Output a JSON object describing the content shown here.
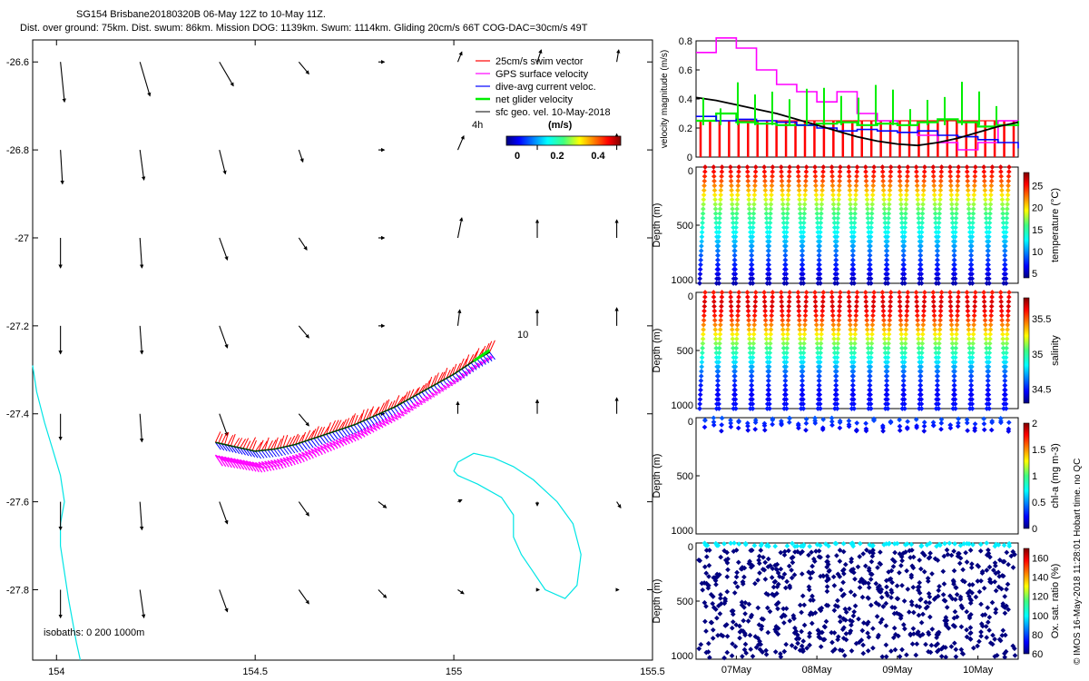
{
  "header": {
    "line1": "SG154 Brisbane20180320B 06-May 12Z to 10-May 11Z.",
    "line2": "Dist. over ground: 75km. Dist. swum: 86km. Mission DOG: 1139km. Swum: 1114km. Gliding 20cm/s 66T COG-DAC=30cm/s 49T"
  },
  "copyright": "© IMOS 16-May-2018 11:28:01 Hobart time. no QC",
  "colors": {
    "swim": "#ff0000",
    "gps": "#ff00ff",
    "dac": "#0000ff",
    "net": "#00ee00",
    "sfc": "#000000",
    "coast": "#00e5e5"
  },
  "chart_data": [
    {
      "type": "scatter",
      "name": "track-map",
      "xlim": [
        153.94,
        155.5
      ],
      "ylim": [
        -27.96,
        -26.55
      ],
      "xticks": [
        154,
        154.5,
        155,
        155.5
      ],
      "xtick_labels": [
        "154",
        "154.5",
        "155",
        "155.5"
      ],
      "yticks": [
        -26.6,
        -26.8,
        -27,
        -27.2,
        -27.4,
        -27.6,
        -27.8
      ],
      "ytick_labels": [
        "-26.6",
        "-26.8",
        "-27",
        "-27.2",
        "-27.4",
        "-27.6",
        "-27.8"
      ],
      "legend": [
        {
          "label": "25cm/s swim vector",
          "color": "#ff0000"
        },
        {
          "label": "GPS surface velocity",
          "color": "#ff00ff"
        },
        {
          "label": "dive-avg current veloc.",
          "color": "#0000ff"
        },
        {
          "label": "net glider velocity",
          "color": "#00ee00"
        },
        {
          "label": "sfc geo. vel. 10-May-2018",
          "color": "#000000"
        }
      ],
      "colorbar": {
        "title": "(m/s)",
        "ticks": [
          "0",
          "0.2",
          "0.4"
        ],
        "range": [
          0,
          0.5
        ]
      },
      "annotations": {
        "corner_label": "4h",
        "scale_label": "10",
        "isobaths": "isobaths: 0   200  1000m"
      },
      "track": {
        "lon": [
          154.4,
          154.45,
          154.5,
          154.55,
          154.6,
          154.65,
          154.7,
          154.75,
          154.8,
          154.85,
          154.9,
          154.95,
          155.0,
          155.05,
          155.09
        ],
        "lat": [
          -27.465,
          -27.475,
          -27.485,
          -27.48,
          -27.47,
          -27.455,
          -27.44,
          -27.425,
          -27.405,
          -27.385,
          -27.36,
          -27.335,
          -27.31,
          -27.28,
          -27.26
        ]
      },
      "coastline": {
        "lon": [
          153.94,
          153.95,
          153.97,
          153.99,
          154.01,
          154.02,
          154.01,
          154.01,
          154.02,
          154.03,
          154.04,
          154.05,
          154.06
        ],
        "lat": [
          -27.29,
          -27.35,
          -27.42,
          -27.48,
          -27.54,
          -27.6,
          -27.65,
          -27.7,
          -27.76,
          -27.82,
          -27.87,
          -27.92,
          -27.96
        ]
      },
      "isobath_loop": {
        "lon": [
          155.0,
          155.01,
          155.05,
          155.1,
          155.15,
          155.2,
          155.26,
          155.3,
          155.32,
          155.31,
          155.28,
          155.23,
          155.2,
          155.17,
          155.15,
          155.15,
          155.12,
          155.06,
          155.01,
          155.0
        ],
        "lat": [
          -27.53,
          -27.51,
          -27.49,
          -27.5,
          -27.52,
          -27.55,
          -27.6,
          -27.65,
          -27.72,
          -27.79,
          -27.82,
          -27.8,
          -27.76,
          -27.72,
          -27.68,
          -27.63,
          -27.59,
          -27.56,
          -27.54,
          -27.53
        ]
      },
      "vector_field": {
        "lon": [
          154.01,
          154.21,
          154.41,
          154.61,
          154.81,
          155.01,
          155.21,
          155.41
        ],
        "lat": [
          -26.6,
          -26.8,
          -27.0,
          -27.2,
          -27.4,
          -27.6,
          -27.8
        ],
        "u": [
          [
            0.02,
            0.05,
            0.07,
            0.05,
            0.03,
            0.02,
            0.02,
            0.01
          ],
          [
            0.01,
            0.02,
            0.03,
            0.02,
            0.03,
            0.03,
            0.0,
            0.0
          ],
          [
            0.0,
            0.01,
            0.04,
            0.04,
            0.03,
            0.02,
            0.0,
            0.0
          ],
          [
            0.0,
            0.01,
            0.04,
            0.05,
            0.03,
            0.01,
            0.0,
            0.0
          ],
          [
            0.0,
            0.01,
            0.04,
            0.05,
            0.03,
            0.0,
            0.0,
            0.0
          ],
          [
            0.0,
            0.01,
            0.04,
            0.05,
            0.04,
            0.02,
            0.0,
            0.02
          ],
          [
            0.0,
            0.02,
            0.04,
            0.05,
            0.04,
            0.03,
            0.01,
            0.01
          ]
        ],
        "v": [
          [
            -0.2,
            -0.17,
            -0.12,
            -0.06,
            0.0,
            0.05,
            0.06,
            0.06
          ],
          [
            -0.17,
            -0.15,
            -0.12,
            -0.06,
            0.0,
            0.07,
            0.06,
            0.08
          ],
          [
            -0.15,
            -0.15,
            -0.11,
            -0.06,
            0.0,
            0.1,
            0.09,
            0.09
          ],
          [
            -0.14,
            -0.14,
            -0.11,
            -0.06,
            0.0,
            0.08,
            0.08,
            0.09
          ],
          [
            -0.13,
            -0.14,
            -0.11,
            -0.06,
            0.0,
            0.06,
            0.07,
            0.08
          ],
          [
            -0.14,
            -0.14,
            -0.11,
            -0.07,
            -0.03,
            0.01,
            -0.02,
            -0.03
          ],
          [
            -0.14,
            -0.14,
            -0.11,
            -0.07,
            -0.04,
            -0.02,
            0.0,
            0.0
          ]
        ]
      }
    },
    {
      "type": "line",
      "name": "velocity-magnitude",
      "ylabel": "velocity magnitude (m/s)",
      "xlim": [
        6.5,
        10.5
      ],
      "ylim": [
        0,
        0.8
      ],
      "yticks": [
        0,
        0.2,
        0.4,
        0.6,
        0.8
      ],
      "ytick_labels": [
        "0",
        "0.2",
        "0.4",
        "0.6",
        "0.8"
      ],
      "series": [
        {
          "name": "GPS surface velocity",
          "color": "#ff00ff",
          "x": [
            6.5,
            6.75,
            7.0,
            7.25,
            7.5,
            7.75,
            8.0,
            8.25,
            8.5,
            8.75,
            9.0,
            9.25,
            9.5,
            9.75,
            10.0,
            10.25,
            10.5
          ],
          "values": [
            0.72,
            0.82,
            0.75,
            0.6,
            0.5,
            0.45,
            0.38,
            0.45,
            0.3,
            0.25,
            0.22,
            0.15,
            0.1,
            0.05,
            0.1,
            0.25,
            0.22
          ]
        },
        {
          "name": "net glider velocity",
          "color": "#00ee00",
          "x": [
            6.5,
            6.75,
            7.0,
            7.25,
            7.5,
            7.75,
            8.0,
            8.25,
            8.5,
            8.75,
            9.0,
            9.25,
            9.5,
            9.75,
            10.0,
            10.25,
            10.5
          ],
          "values": [
            0.25,
            0.3,
            0.24,
            0.23,
            0.22,
            0.22,
            0.23,
            0.24,
            0.22,
            0.23,
            0.22,
            0.24,
            0.26,
            0.24,
            0.21,
            0.22,
            0.25
          ]
        },
        {
          "name": "dive-avg current veloc.",
          "color": "#0000ff",
          "x": [
            6.5,
            6.75,
            7.0,
            7.25,
            7.5,
            7.75,
            8.0,
            8.25,
            8.5,
            8.75,
            9.0,
            9.25,
            9.5,
            9.75,
            10.0,
            10.25,
            10.5
          ],
          "values": [
            0.28,
            0.25,
            0.26,
            0.25,
            0.24,
            0.22,
            0.2,
            0.18,
            0.19,
            0.18,
            0.17,
            0.18,
            0.15,
            0.14,
            0.12,
            0.1,
            0.06
          ]
        },
        {
          "name": "sfc geo. vel.",
          "color": "#000000",
          "x": [
            6.5,
            6.75,
            7.0,
            7.25,
            7.5,
            7.75,
            8.0,
            8.25,
            8.5,
            8.75,
            9.0,
            9.25,
            9.5,
            9.75,
            10.0,
            10.25,
            10.5
          ],
          "values": [
            0.41,
            0.39,
            0.36,
            0.33,
            0.3,
            0.26,
            0.22,
            0.18,
            0.14,
            0.11,
            0.09,
            0.08,
            0.1,
            0.13,
            0.17,
            0.21,
            0.24
          ]
        }
      ],
      "swim_bars": {
        "color": "#ff0000",
        "value": 0.25,
        "count": 34
      }
    },
    {
      "type": "scatter",
      "name": "temperature-section",
      "ylabel": "Depth (m)",
      "ylim": [
        1000,
        0
      ],
      "yticks": [
        0,
        500,
        1000
      ],
      "ytick_labels": [
        "0",
        "500",
        "1000"
      ],
      "colorbar": {
        "label": "temperature (°C)",
        "range": [
          4,
          28
        ],
        "ticks": [
          25,
          20,
          15,
          10,
          5
        ],
        "tick_labels": [
          "25",
          "20",
          "15",
          "10",
          "5"
        ]
      },
      "profile": {
        "depth": [
          0,
          100,
          200,
          300,
          400,
          500,
          600,
          700,
          800,
          900,
          1000
        ],
        "values": [
          26,
          24,
          21,
          18,
          16,
          14,
          12,
          10,
          8,
          6.5,
          5
        ]
      },
      "dives": 37,
      "max_depth": 1000
    },
    {
      "type": "scatter",
      "name": "salinity-section",
      "ylabel": "Depth (m)",
      "ylim": [
        1000,
        0
      ],
      "yticks": [
        0,
        500,
        1000
      ],
      "ytick_labels": [
        "0",
        "500",
        "1000"
      ],
      "colorbar": {
        "label": "salinity",
        "range": [
          34.3,
          35.8
        ],
        "ticks": [
          35.5,
          35,
          34.5
        ],
        "tick_labels": [
          "35.5",
          "35",
          "34.5"
        ]
      },
      "profile": {
        "depth": [
          0,
          100,
          200,
          300,
          400,
          500,
          600,
          700,
          800,
          900,
          1000
        ],
        "values": [
          35.6,
          35.7,
          35.6,
          35.4,
          35.2,
          35.0,
          34.8,
          34.6,
          34.5,
          34.45,
          34.5
        ]
      },
      "dives": 37,
      "max_depth": 1000
    },
    {
      "type": "scatter",
      "name": "chla-section",
      "ylabel": "Depth (m)",
      "ylim": [
        1000,
        0
      ],
      "yticks": [
        0,
        500,
        1000
      ],
      "ytick_labels": [
        "0",
        "500",
        "1000"
      ],
      "colorbar": {
        "label": "chl-a (mg m-3)",
        "range": [
          0,
          2
        ],
        "ticks": [
          2,
          1.5,
          1,
          0.5,
          0
        ],
        "tick_labels": [
          "2",
          "1.5",
          "1",
          "0.5",
          "0"
        ]
      },
      "profile": {
        "depth": [
          0,
          50,
          100,
          150,
          200
        ],
        "values": [
          0.4,
          0.3,
          0.2,
          0.15,
          0.1
        ]
      },
      "dives": 37,
      "max_depth": 200
    },
    {
      "type": "scatter",
      "name": "oxygen-section",
      "ylabel": "Depth (m)",
      "ylim": [
        1000,
        0
      ],
      "yticks": [
        0,
        500,
        1000
      ],
      "ytick_labels": [
        "0",
        "500",
        "1000"
      ],
      "colorbar": {
        "label": "Ox. sat. ratio (%)",
        "range": [
          60,
          170
        ],
        "ticks": [
          160,
          140,
          120,
          100,
          80,
          60
        ],
        "tick_labels": [
          "160",
          "140",
          "120",
          "100",
          "80",
          "60"
        ]
      },
      "profile": {
        "depth": [
          0,
          25,
          50,
          100,
          500,
          1000
        ],
        "values": [
          100,
          95,
          60,
          60,
          60,
          60
        ]
      },
      "dives": 37,
      "max_depth": 1000,
      "xticks": [
        7,
        8,
        9,
        10
      ],
      "xtick_labels": [
        "07May",
        "08May",
        "09May",
        "10May"
      ]
    }
  ]
}
